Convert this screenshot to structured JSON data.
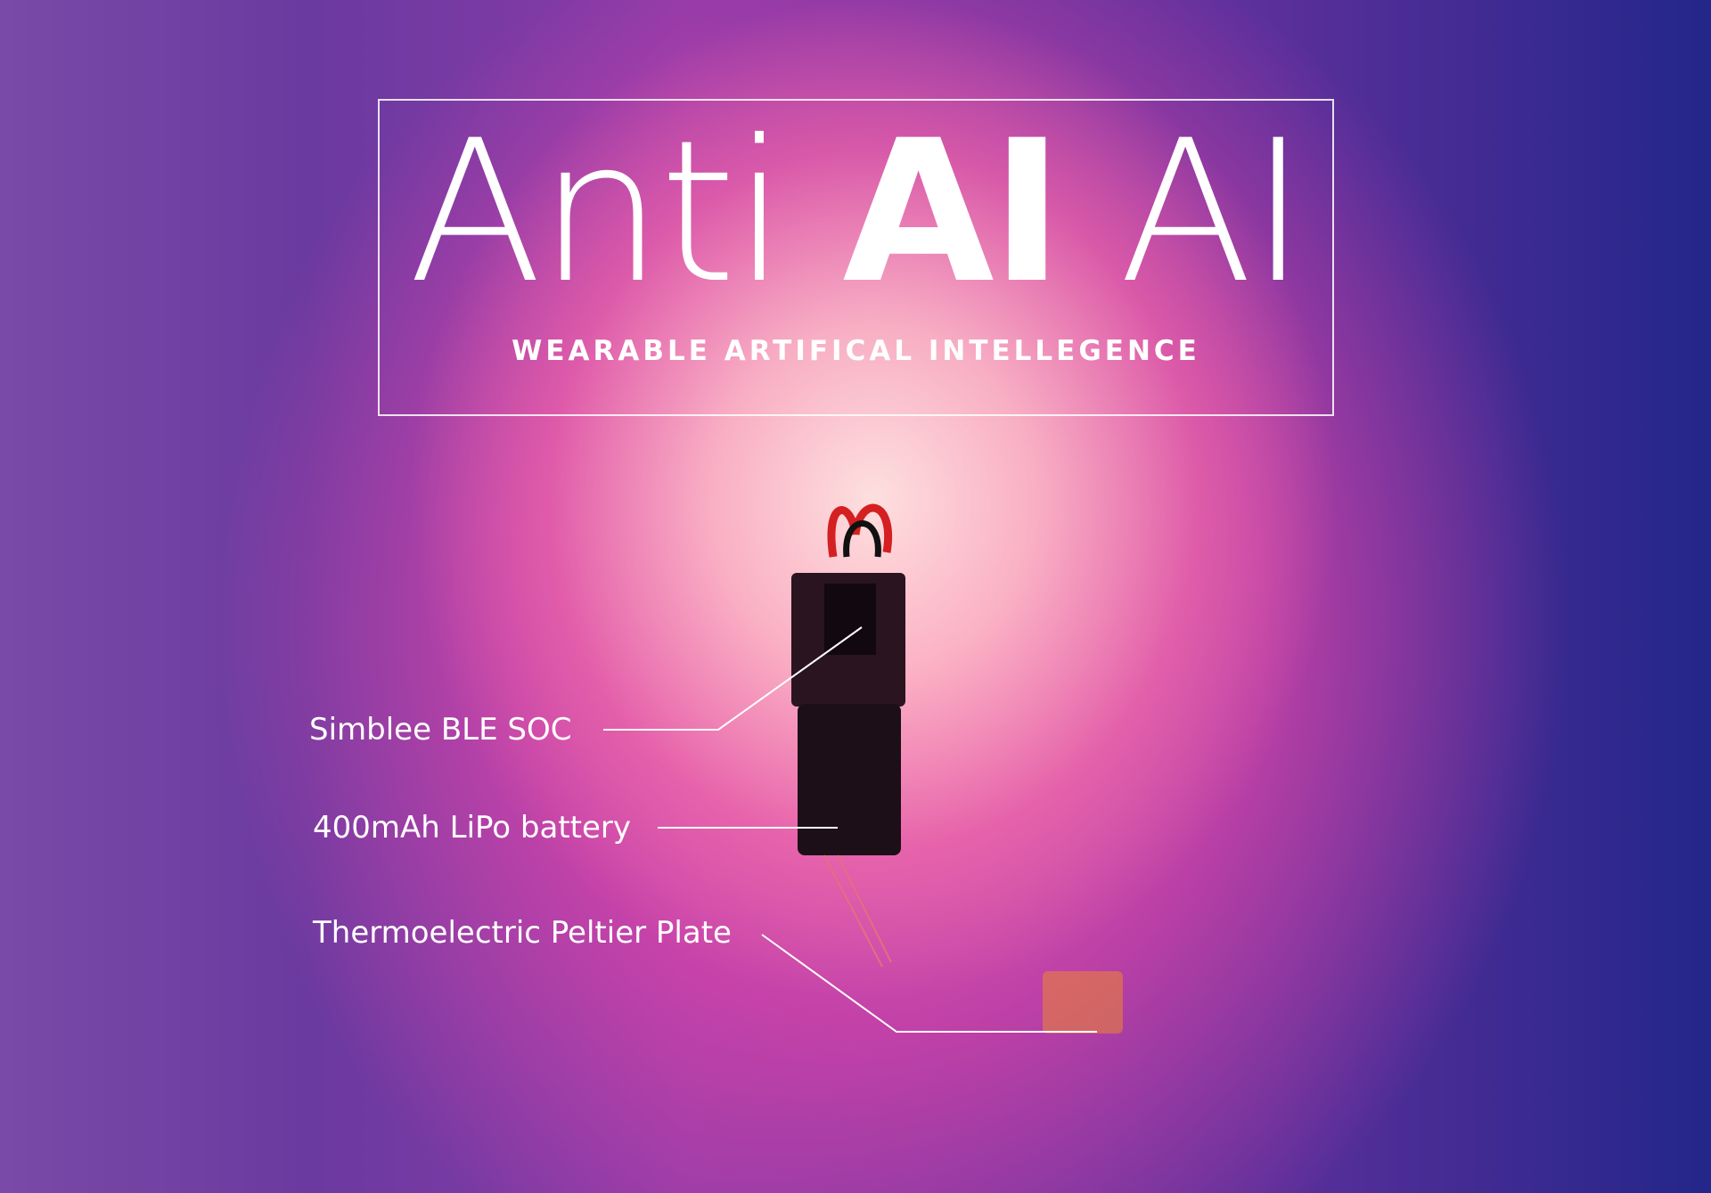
{
  "header": {
    "title": {
      "word1": "Anti",
      "word2": "AI",
      "word3": "AI"
    },
    "subtitle": "WEARABLE ARTIFICAL INTELLEGENCE"
  },
  "callouts": [
    {
      "label": "Simblee BLE SOC"
    },
    {
      "label": "400mAh LiPo battery"
    },
    {
      "label": "Thermoelectric Peltier Plate"
    }
  ]
}
